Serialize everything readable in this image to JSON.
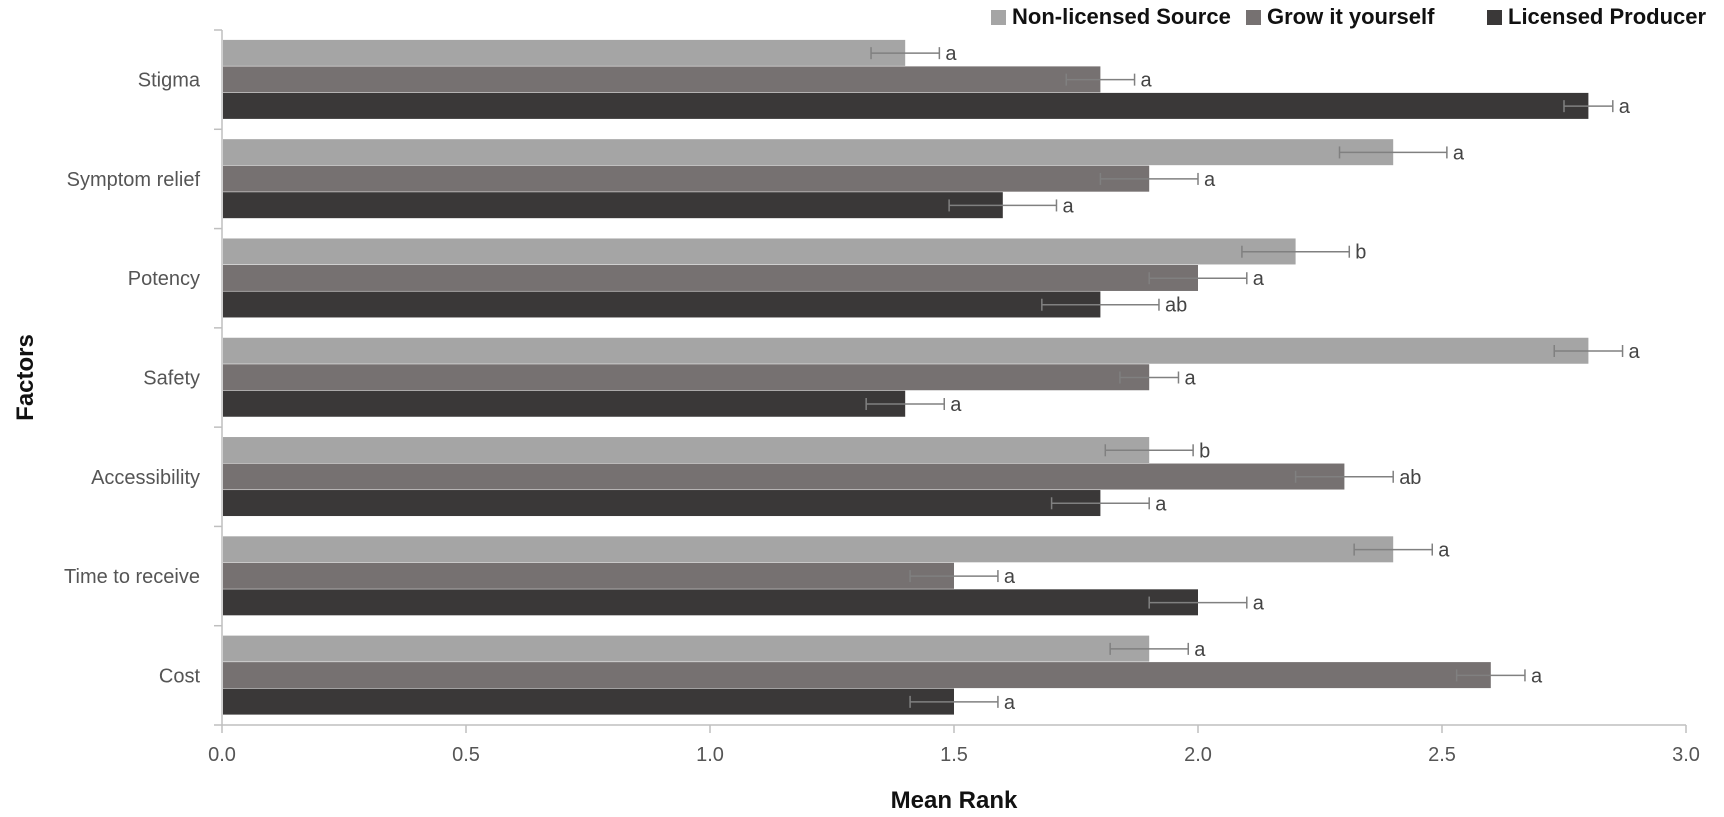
{
  "chart_data": {
    "type": "bar",
    "orientation": "horizontal",
    "title": "",
    "xlabel": "Mean Rank",
    "ylabel": "Factors",
    "xlim": [
      0,
      3.0
    ],
    "xticks": [
      "0.0",
      "0.5",
      "1.0",
      "1.5",
      "2.0",
      "2.5",
      "3.0"
    ],
    "grid": false,
    "legend_position": "top-right",
    "categories": [
      "Stigma",
      "Symptom relief",
      "Potency",
      "Safety",
      "Accessibility",
      "Time to receive",
      "Cost"
    ],
    "series": [
      {
        "name": "Non-licensed Source",
        "color": "#a5a5a5",
        "values": [
          1.4,
          2.4,
          2.2,
          2.8,
          1.9,
          2.4,
          1.9
        ],
        "errors": [
          0.07,
          0.11,
          0.11,
          0.07,
          0.09,
          0.08,
          0.08
        ],
        "labels": [
          "a",
          "a",
          "b",
          "a",
          "b",
          "a",
          "a"
        ]
      },
      {
        "name": "Grow it yourself",
        "color": "#767171",
        "values": [
          1.8,
          1.9,
          2.0,
          1.9,
          2.3,
          1.5,
          2.6
        ],
        "errors": [
          0.07,
          0.1,
          0.1,
          0.06,
          0.1,
          0.09,
          0.07
        ],
        "labels": [
          "a",
          "a",
          "a",
          "a",
          "ab",
          "a",
          "a"
        ]
      },
      {
        "name": "Licensed Producer",
        "color": "#3a3838",
        "values": [
          2.8,
          1.6,
          1.8,
          1.4,
          1.8,
          2.0,
          1.5
        ],
        "errors": [
          0.05,
          0.11,
          0.12,
          0.08,
          0.1,
          0.1,
          0.09
        ],
        "labels": [
          "a",
          "a",
          "ab",
          "a",
          "a",
          "a",
          "a"
        ]
      }
    ]
  }
}
